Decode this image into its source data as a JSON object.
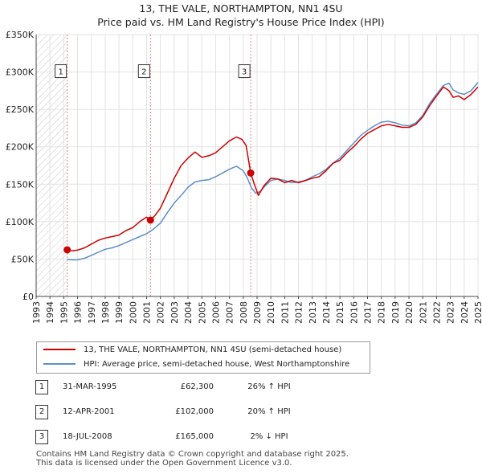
{
  "chart_data": {
    "type": "line",
    "title": "13, THE VALE, NORTHAMPTON, NN1 4SU",
    "subtitle": "Price paid vs. HM Land Registry's House Price Index (HPI)",
    "xlabel": "",
    "ylabel": "",
    "xlim": [
      1993,
      2025
    ],
    "ylim": [
      0,
      350000
    ],
    "x_ticks": [
      "1993",
      "1994",
      "1995",
      "1996",
      "1997",
      "1998",
      "1999",
      "2000",
      "2001",
      "2002",
      "2003",
      "2004",
      "2005",
      "2006",
      "2007",
      "2008",
      "2009",
      "2010",
      "2011",
      "2012",
      "2013",
      "2014",
      "2015",
      "2016",
      "2017",
      "2018",
      "2019",
      "2020",
      "2021",
      "2022",
      "2023",
      "2024",
      "2025"
    ],
    "y_ticks": [
      {
        "value": 0,
        "label": "£0"
      },
      {
        "value": 50000,
        "label": "£50K"
      },
      {
        "value": 100000,
        "label": "£100K"
      },
      {
        "value": 150000,
        "label": "£150K"
      },
      {
        "value": 200000,
        "label": "£200K"
      },
      {
        "value": 250000,
        "label": "£250K"
      },
      {
        "value": 300000,
        "label": "£300K"
      },
      {
        "value": 350000,
        "label": "£350K"
      }
    ],
    "grid": true,
    "hatched_region_years": [
      1993,
      1995.25
    ],
    "series": [
      {
        "name": "13, THE VALE, NORTHAMPTON, NN1 4SU (semi-detached house)",
        "color": "#cc0000",
        "x": [
          1995.25,
          1995.6,
          1996,
          1996.5,
          1997,
          1997.5,
          1998,
          1998.5,
          1999,
          1999.5,
          2000,
          2000.5,
          2001,
          2001.28,
          2001.6,
          2002,
          2002.5,
          2003,
          2003.5,
          2004,
          2004.5,
          2005,
          2005.5,
          2006,
          2006.5,
          2007,
          2007.5,
          2007.9,
          2008.2,
          2008.54,
          2008.8,
          2009.1,
          2009.5,
          2010,
          2010.5,
          2011,
          2011.5,
          2012,
          2012.5,
          2013,
          2013.5,
          2014,
          2014.5,
          2015,
          2015.5,
          2016,
          2016.5,
          2017,
          2017.5,
          2018,
          2018.5,
          2019,
          2019.5,
          2020,
          2020.5,
          2021,
          2021.5,
          2022,
          2022.5,
          2022.9,
          2023.2,
          2023.6,
          2024,
          2024.5,
          2025
        ],
        "values": [
          62300,
          61000,
          62000,
          65000,
          70000,
          75000,
          78000,
          80000,
          82000,
          88000,
          92000,
          100000,
          106000,
          102000,
          108000,
          118000,
          138000,
          158000,
          175000,
          185000,
          193000,
          186000,
          188000,
          192000,
          200000,
          208000,
          213000,
          210000,
          202000,
          165000,
          150000,
          135000,
          148000,
          158000,
          157000,
          152000,
          155000,
          152000,
          155000,
          158000,
          160000,
          168000,
          178000,
          182000,
          192000,
          200000,
          210000,
          218000,
          223000,
          228000,
          230000,
          228000,
          226000,
          226000,
          230000,
          240000,
          255000,
          268000,
          280000,
          275000,
          266000,
          268000,
          263000,
          270000,
          280000
        ]
      },
      {
        "name": "HPI: Average price, semi-detached house, West Northamptonshire",
        "color": "#5b8fc9",
        "x": [
          1995.25,
          1995.6,
          1996,
          1996.5,
          1997,
          1997.5,
          1998,
          1998.5,
          1999,
          1999.5,
          2000,
          2000.5,
          2001,
          2001.5,
          2002,
          2002.5,
          2003,
          2003.5,
          2004,
          2004.5,
          2005,
          2005.5,
          2006,
          2006.5,
          2007,
          2007.5,
          2008,
          2008.3,
          2008.6,
          2008.9,
          2009.2,
          2009.5,
          2010,
          2010.5,
          2011,
          2011.5,
          2012,
          2012.5,
          2013,
          2013.5,
          2014,
          2014.5,
          2015,
          2015.5,
          2016,
          2016.5,
          2017,
          2017.5,
          2018,
          2018.5,
          2019,
          2019.5,
          2020,
          2020.5,
          2021,
          2021.5,
          2022,
          2022.5,
          2022.9,
          2023.2,
          2023.6,
          2024,
          2024.5,
          2025
        ],
        "values": [
          49500,
          48800,
          49000,
          51000,
          55000,
          59000,
          63000,
          65000,
          68000,
          72000,
          76000,
          80000,
          84000,
          90000,
          98000,
          112000,
          125000,
          135000,
          146000,
          153000,
          155000,
          156000,
          160000,
          165000,
          170000,
          174000,
          168000,
          158000,
          145000,
          138000,
          140000,
          146000,
          155000,
          157000,
          155000,
          152000,
          153000,
          155000,
          160000,
          164000,
          170000,
          178000,
          185000,
          195000,
          205000,
          215000,
          222000,
          228000,
          233000,
          234000,
          232000,
          229000,
          228000,
          232000,
          242000,
          258000,
          270000,
          282000,
          285000,
          276000,
          272000,
          270000,
          275000,
          286000
        ]
      }
    ],
    "sales": [
      {
        "label": "1",
        "x": 1995.25,
        "value": 62300
      },
      {
        "label": "2",
        "x": 2001.28,
        "value": 102000
      },
      {
        "label": "3",
        "x": 2008.54,
        "value": 165000
      }
    ]
  },
  "legend": {
    "property_label": "13, THE VALE, NORTHAMPTON, NN1 4SU (semi-detached house)",
    "hpi_label": "HPI: Average price, semi-detached house, West Northamptonshire"
  },
  "sales_table": [
    {
      "num": "1",
      "date": "31-MAR-1995",
      "price": "£62,300",
      "hpi": "26% ↑ HPI"
    },
    {
      "num": "2",
      "date": "12-APR-2001",
      "price": "£102,000",
      "hpi": "20% ↑ HPI"
    },
    {
      "num": "3",
      "date": "18-JUL-2008",
      "price": "£165,000",
      "hpi": "2% ↓ HPI"
    }
  ],
  "footer": {
    "line1": "Contains HM Land Registry data © Crown copyright and database right 2025.",
    "line2": "This data is licensed under the Open Government Licence v3.0."
  }
}
